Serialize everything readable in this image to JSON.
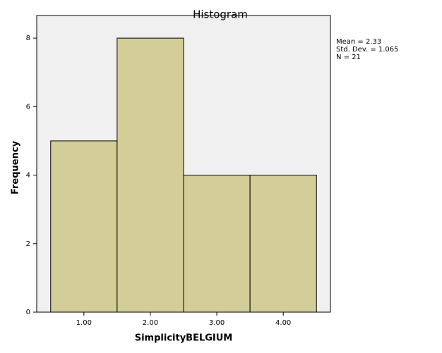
{
  "chart_data": {
    "type": "histogram",
    "title": "Histogram",
    "x_label": "SimplicityBELGIUM",
    "y_label": "Frequency",
    "bins": [
      0.5,
      1.5,
      2.5,
      3.5,
      4.5
    ],
    "values": [
      5,
      8,
      4,
      4
    ],
    "color": "#d3ce97",
    "xlim": [
      0.29,
      4.71
    ],
    "xticks": [
      {
        "value": 1,
        "label": "1.00"
      },
      {
        "value": 2,
        "label": "2.00"
      },
      {
        "value": 3,
        "label": "3.00"
      },
      {
        "value": 4,
        "label": "4.00"
      }
    ],
    "ylim": [
      0,
      8.66
    ],
    "yticks": [
      0,
      2,
      4,
      6,
      8
    ],
    "annotations": [
      "Mean = 2.33",
      "Std. Dev. = 1.065",
      "N = 21"
    ]
  }
}
